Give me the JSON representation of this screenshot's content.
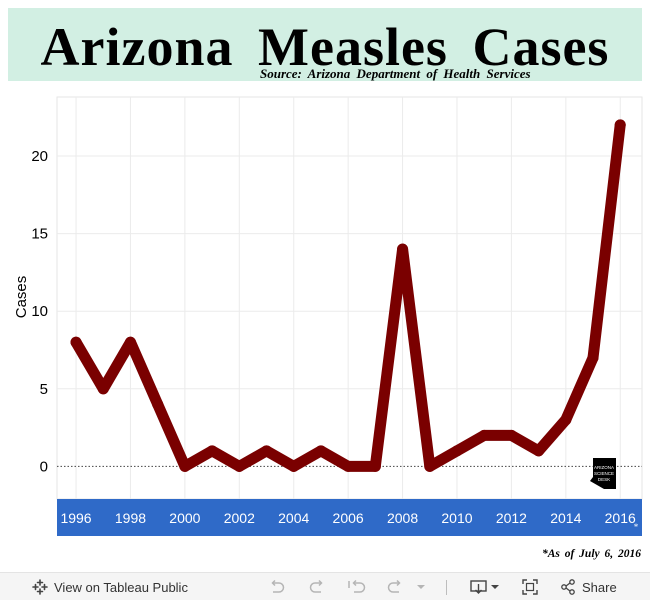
{
  "header": {
    "title": "Arizona  Measles  Cases",
    "source": "Source: Arizona Department of Health Services"
  },
  "chart_data": {
    "type": "line",
    "title": "Arizona Measles Cases",
    "ylabel": "Cases",
    "xlabel": "",
    "x": [
      1996,
      1997,
      1998,
      1999,
      2000,
      2001,
      2002,
      2003,
      2004,
      2005,
      2006,
      2007,
      2008,
      2009,
      2010,
      2011,
      2012,
      2013,
      2014,
      2015,
      2016
    ],
    "values": [
      8,
      5,
      8,
      4,
      0,
      1,
      0,
      1,
      0,
      1,
      0,
      0,
      14,
      0,
      1,
      2,
      2,
      1,
      3,
      7,
      22
    ],
    "xlim": [
      1995.3,
      2016.8
    ],
    "ylim": [
      -2.1,
      23.8
    ],
    "x_ticks": [
      "1996",
      "1998",
      "2000",
      "2002",
      "2004",
      "2006",
      "2008",
      "2010",
      "2012",
      "2014",
      "2016"
    ],
    "y_ticks": [
      "0",
      "5",
      "10",
      "15",
      "20"
    ],
    "x_tick_values": [
      1996,
      1998,
      2000,
      2002,
      2004,
      2006,
      2008,
      2010,
      2012,
      2014,
      2016
    ],
    "y_tick_values": [
      0,
      5,
      10,
      15,
      20
    ],
    "grid": true,
    "zero_line": "dotted",
    "axis_band_marker": "*",
    "colors": {
      "line": "#7a0000",
      "axis_band": "#2f6ac8",
      "axis_text": "#ffffff",
      "grid": "#ebebeb"
    }
  },
  "logo": {
    "text_lines": [
      "ARIZONA",
      "SCIENCE",
      "DESK"
    ]
  },
  "footnote": "*As of July 6, 2016",
  "toolbar": {
    "view_label": "View on Tableau Public",
    "share_label": "Share"
  }
}
